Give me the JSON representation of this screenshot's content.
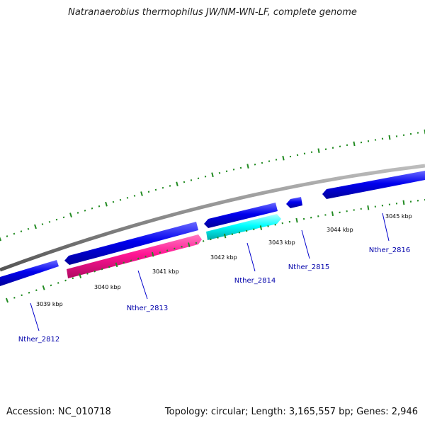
{
  "title": "Natranaerobius thermophilus JW/NM-WN-LF, complete genome",
  "footer": {
    "accession_label": "Accession:",
    "accession": "NC_010718",
    "topology_text": "Topology: circular; Length: 3,165,557 bp; Genes: 2,946"
  },
  "colors": {
    "backbone": "#888888",
    "gene_forward": "#0000ee",
    "gene_highlight_pink": "#ff1493",
    "gene_highlight_cyan": "#00ffff",
    "tick": "#228b22",
    "label_text": "#0000aa",
    "leader": "#0000cc"
  },
  "scale_labels": [
    "3039 kbp",
    "3040 kbp",
    "3041 kbp",
    "3042 kbp",
    "3043 kbp",
    "3044 kbp",
    "3045 kbp"
  ],
  "genes": [
    {
      "id": "Nther_2812",
      "strand": "forward",
      "color": "blue"
    },
    {
      "id": "Nther_2813",
      "strand": "reverse",
      "color": "pink"
    },
    {
      "id": "Nther_2814",
      "strand": "reverse",
      "color": "cyan"
    },
    {
      "id": "Nther_2815",
      "strand": "forward",
      "color": "blue"
    },
    {
      "id": "Nther_2816",
      "strand": "forward",
      "color": "blue"
    }
  ],
  "unlabeled_genes": 2
}
